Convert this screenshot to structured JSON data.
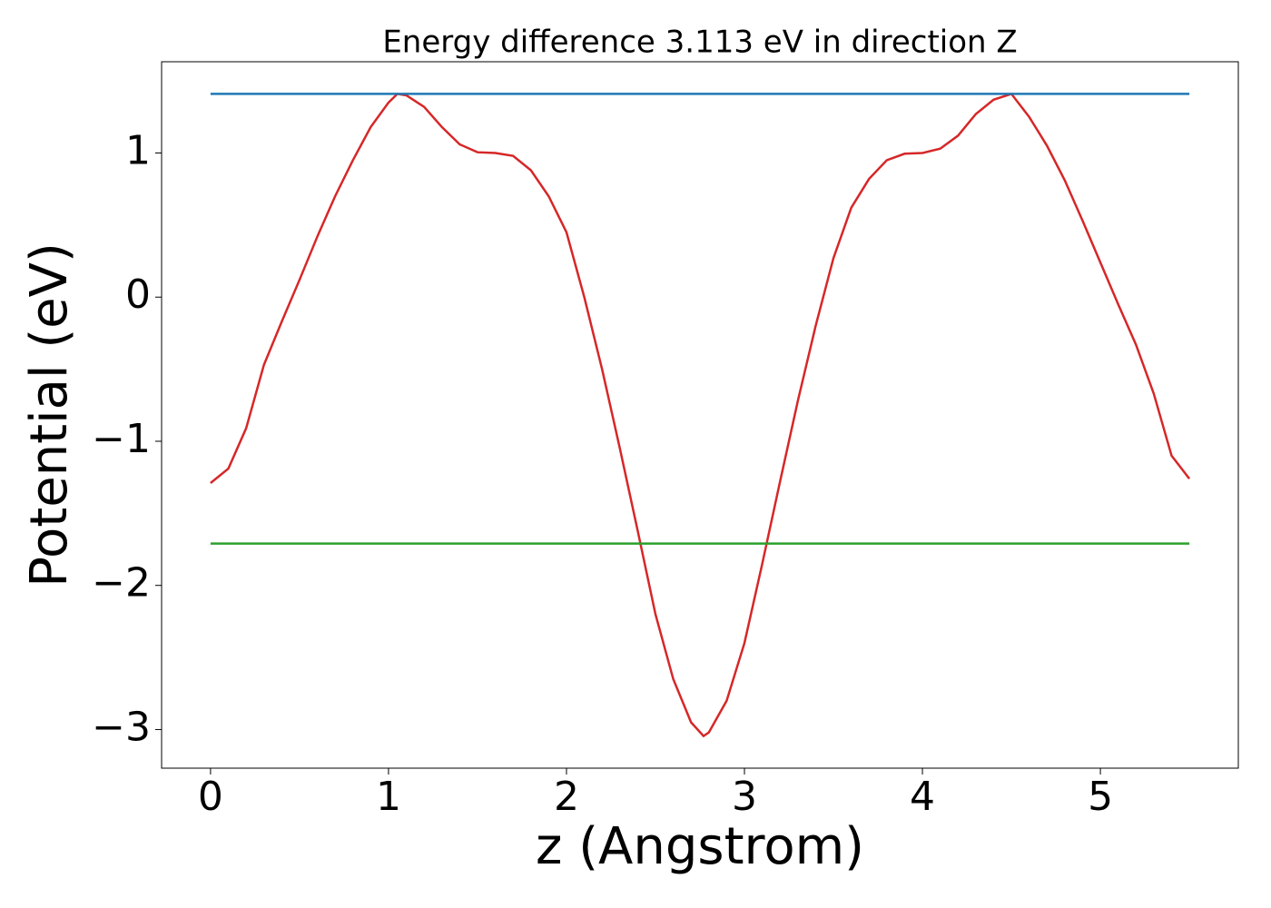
{
  "chart_data": {
    "type": "line",
    "title": "Energy difference 3.113 eV in direction Z",
    "xlabel": "z (Angstrom)",
    "ylabel": "Potential (eV)",
    "x": [
      0,
      0.1,
      0.2,
      0.3,
      0.4,
      0.5,
      0.6,
      0.7,
      0.8,
      0.9,
      1.0,
      1.05,
      1.1,
      1.2,
      1.3,
      1.4,
      1.5,
      1.6,
      1.7,
      1.8,
      1.9,
      2.0,
      2.1,
      2.2,
      2.3,
      2.4,
      2.5,
      2.6,
      2.7,
      2.77,
      2.8,
      2.9,
      3.0,
      3.1,
      3.2,
      3.3,
      3.4,
      3.5,
      3.6,
      3.7,
      3.8,
      3.9,
      4.0,
      4.1,
      4.2,
      4.3,
      4.4,
      4.5,
      4.6,
      4.7,
      4.8,
      4.9,
      5.0,
      5.1,
      5.2,
      5.3,
      5.4,
      5.5
    ],
    "series": [
      {
        "color": "#d62728",
        "values": [
          -1.29,
          -1.19,
          -0.91,
          -0.47,
          -0.17,
          0.12,
          0.42,
          0.7,
          0.95,
          1.18,
          1.35,
          1.41,
          1.4,
          1.32,
          1.18,
          1.06,
          1.005,
          1.0,
          0.98,
          0.88,
          0.7,
          0.45,
          0.0,
          -0.5,
          -1.05,
          -1.62,
          -2.2,
          -2.65,
          -2.95,
          -3.045,
          -3.02,
          -2.8,
          -2.4,
          -1.85,
          -1.28,
          -0.72,
          -0.2,
          0.27,
          0.62,
          0.82,
          0.95,
          0.995,
          1.0,
          1.03,
          1.12,
          1.27,
          1.37,
          1.41,
          1.25,
          1.05,
          0.81,
          0.53,
          0.24,
          -0.05,
          -0.33,
          -0.67,
          -1.1,
          -1.26
        ]
      },
      {
        "color": "#1f77b4",
        "values": [
          1.41,
          1.41,
          1.41,
          1.41,
          1.41,
          1.41,
          1.41,
          1.41,
          1.41,
          1.41,
          1.41,
          1.41,
          1.41,
          1.41,
          1.41,
          1.41,
          1.41,
          1.41,
          1.41,
          1.41,
          1.41,
          1.41,
          1.41,
          1.41,
          1.41,
          1.41,
          1.41,
          1.41,
          1.41,
          1.41,
          1.41,
          1.41,
          1.41,
          1.41,
          1.41,
          1.41,
          1.41,
          1.41,
          1.41,
          1.41,
          1.41,
          1.41,
          1.41,
          1.41,
          1.41,
          1.41,
          1.41,
          1.41,
          1.41,
          1.41,
          1.41,
          1.41,
          1.41,
          1.41,
          1.41,
          1.41,
          1.41,
          1.41
        ]
      },
      {
        "color": "#2ca02c",
        "values": [
          -1.71,
          -1.71,
          -1.71,
          -1.71,
          -1.71,
          -1.71,
          -1.71,
          -1.71,
          -1.71,
          -1.71,
          -1.71,
          -1.71,
          -1.71,
          -1.71,
          -1.71,
          -1.71,
          -1.71,
          -1.71,
          -1.71,
          -1.71,
          -1.71,
          -1.71,
          -1.71,
          -1.71,
          -1.71,
          -1.71,
          -1.71,
          -1.71,
          -1.71,
          -1.71,
          -1.71,
          -1.71,
          -1.71,
          -1.71,
          -1.71,
          -1.71,
          -1.71,
          -1.71,
          -1.71,
          -1.71,
          -1.71,
          -1.71,
          -1.71,
          -1.71,
          -1.71,
          -1.71,
          -1.71,
          -1.71,
          -1.71,
          -1.71,
          -1.71,
          -1.71,
          -1.71,
          -1.71,
          -1.71,
          -1.71,
          -1.71,
          -1.71
        ]
      }
    ],
    "xlim": [
      -0.275,
      5.775
    ],
    "xticks": [
      0,
      1,
      2,
      3,
      4,
      5
    ],
    "ylim": [
      -3.268,
      1.633
    ],
    "yticks": [
      {
        "value": -3,
        "label": "−3"
      },
      {
        "value": -2,
        "label": "−2"
      },
      {
        "value": -1,
        "label": "−1"
      },
      0,
      1
    ]
  }
}
